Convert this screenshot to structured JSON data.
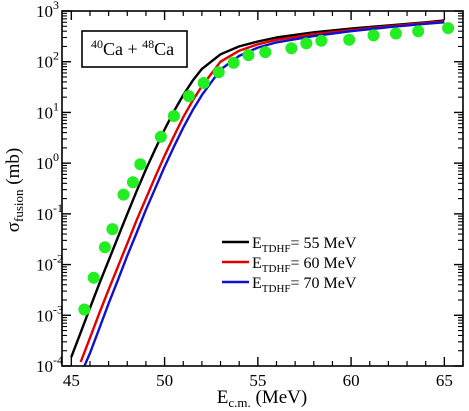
{
  "chart_data": {
    "type": "line",
    "title": "",
    "annotation": {
      "base1_mass": "40",
      "base1_elem": "Ca",
      "plus": " + ",
      "base2_mass": "48",
      "base2_elem": "Ca"
    },
    "ylabel": {
      "main": "σ",
      "sub": "fusion",
      "unit": " (mb)"
    },
    "xlabel": {
      "main": "E",
      "sub": "c.m.",
      "unit": " (MeV)"
    },
    "xlim": [
      44.5,
      66
    ],
    "ylim_log10": [
      -4,
      3
    ],
    "yscale": "log",
    "xticks": [
      {
        "value": 45,
        "label": "45"
      },
      {
        "value": 50,
        "label": "50"
      },
      {
        "value": 55,
        "label": "55"
      },
      {
        "value": 60,
        "label": "60"
      },
      {
        "value": 65,
        "label": "65"
      }
    ],
    "yticks": [
      {
        "exp": -4,
        "base": "10",
        "sup": "-4"
      },
      {
        "exp": -3,
        "base": "10",
        "sup": "-3"
      },
      {
        "exp": -2,
        "base": "10",
        "sup": "-2"
      },
      {
        "exp": -1,
        "base": "10",
        "sup": "-1"
      },
      {
        "exp": 0,
        "base": "10",
        "sup": "0"
      },
      {
        "exp": 1,
        "base": "10",
        "sup": "1"
      },
      {
        "exp": 2,
        "base": "10",
        "sup": "2"
      },
      {
        "exp": 3,
        "base": "10",
        "sup": "3"
      }
    ],
    "legend_position": "center-right",
    "series": [
      {
        "legend_main": "E",
        "legend_sub": "TDHF",
        "legend_value": "= 55 MeV",
        "color": "#000000",
        "x": [
          45.0,
          45.5,
          46.0,
          46.5,
          47.0,
          47.5,
          48.0,
          48.5,
          49.0,
          49.5,
          50.0,
          50.5,
          51.0,
          51.5,
          52.0,
          53.0,
          54.0,
          55.0,
          56.0,
          58.0,
          60.0,
          62.0,
          64.0,
          65.0
        ],
        "y": [
          0.00015,
          0.00046,
          0.0014,
          0.0042,
          0.012,
          0.035,
          0.1,
          0.28,
          0.75,
          1.9,
          4.6,
          10.5,
          22,
          42,
          72,
          140,
          200,
          250,
          300,
          380,
          450,
          520,
          600,
          650
        ]
      },
      {
        "legend_main": "E",
        "legend_sub": "TDHF",
        "legend_value": "= 60 MeV",
        "color": "#e00000",
        "x": [
          45.5,
          46.0,
          46.5,
          47.0,
          47.5,
          48.0,
          48.5,
          49.0,
          49.5,
          50.0,
          50.5,
          51.0,
          51.5,
          52.0,
          53.0,
          54.0,
          55.0,
          56.0,
          58.0,
          60.0,
          62.0,
          64.0,
          65.0
        ],
        "y": [
          0.00012,
          0.00036,
          0.0011,
          0.0032,
          0.0092,
          0.026,
          0.075,
          0.2,
          0.54,
          1.4,
          3.4,
          8.0,
          17,
          33,
          100,
          165,
          220,
          270,
          350,
          420,
          500,
          580,
          620
        ]
      },
      {
        "legend_main": "E",
        "legend_sub": "TDHF",
        "legend_value": "= 70 MeV",
        "color": "#1010d0",
        "x": [
          45.7,
          46.0,
          46.5,
          47.0,
          47.5,
          48.0,
          48.5,
          49.0,
          49.5,
          50.0,
          50.5,
          51.0,
          51.5,
          52.0,
          53.0,
          54.0,
          55.0,
          56.0,
          58.0,
          60.0,
          62.0,
          64.0,
          65.0
        ],
        "y": [
          0.0001,
          0.00018,
          0.00055,
          0.0017,
          0.005,
          0.015,
          0.042,
          0.12,
          0.32,
          0.85,
          2.1,
          5.0,
          11,
          22,
          70,
          130,
          190,
          240,
          320,
          400,
          480,
          560,
          600
        ]
      }
    ],
    "experimental": {
      "color": "#22ee22",
      "x": [
        45.7,
        46.2,
        46.8,
        47.2,
        47.8,
        48.3,
        48.7,
        49.8,
        50.5,
        51.3,
        52.1,
        52.9,
        53.7,
        54.5,
        55.4,
        56.8,
        57.6,
        58.4,
        59.9,
        61.2,
        62.4,
        63.6,
        65.2
      ],
      "y": [
        0.0013,
        0.0055,
        0.022,
        0.05,
        0.24,
        0.42,
        0.95,
        3.3,
        8.5,
        21,
        38,
        62,
        95,
        135,
        155,
        185,
        230,
        260,
        270,
        330,
        360,
        400,
        460
      ]
    }
  }
}
